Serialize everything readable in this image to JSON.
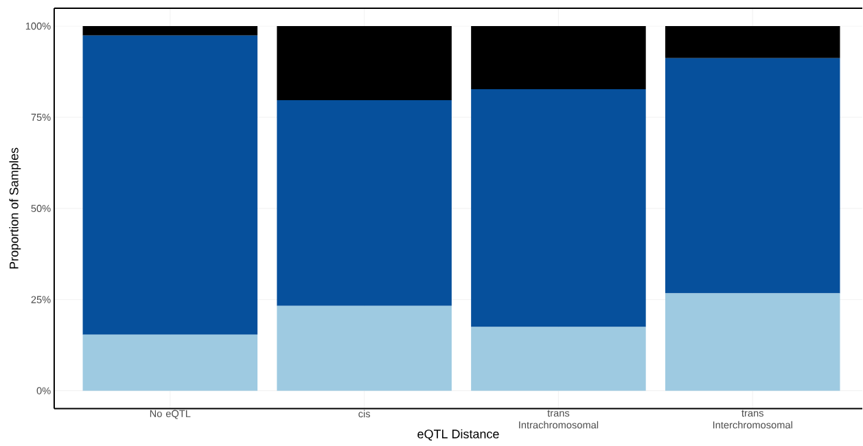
{
  "chart_data": {
    "type": "bar",
    "stacked": true,
    "xlabel": "eQTL Distance",
    "ylabel": "Proportion of Samples",
    "categories": [
      "No eQTL",
      "cis",
      "trans Intrachromosomal",
      "trans Interchromosomal"
    ],
    "series": [
      {
        "color": "#9ecae1",
        "values": [
          15.4,
          23.3,
          17.5,
          26.7
        ]
      },
      {
        "color": "#06509c",
        "values": [
          82.0,
          56.4,
          65.2,
          64.5
        ]
      },
      {
        "color": "#000000",
        "values": [
          2.6,
          20.3,
          17.3,
          8.8
        ]
      }
    ],
    "ylim": [
      -4.9,
      104.9
    ],
    "yticks": [
      {
        "value": 0,
        "label": "0%"
      },
      {
        "value": 25,
        "label": "25%"
      },
      {
        "value": 50,
        "label": "50%"
      },
      {
        "value": 75,
        "label": "75%"
      },
      {
        "value": 100,
        "label": "100%"
      }
    ],
    "grid": true
  }
}
